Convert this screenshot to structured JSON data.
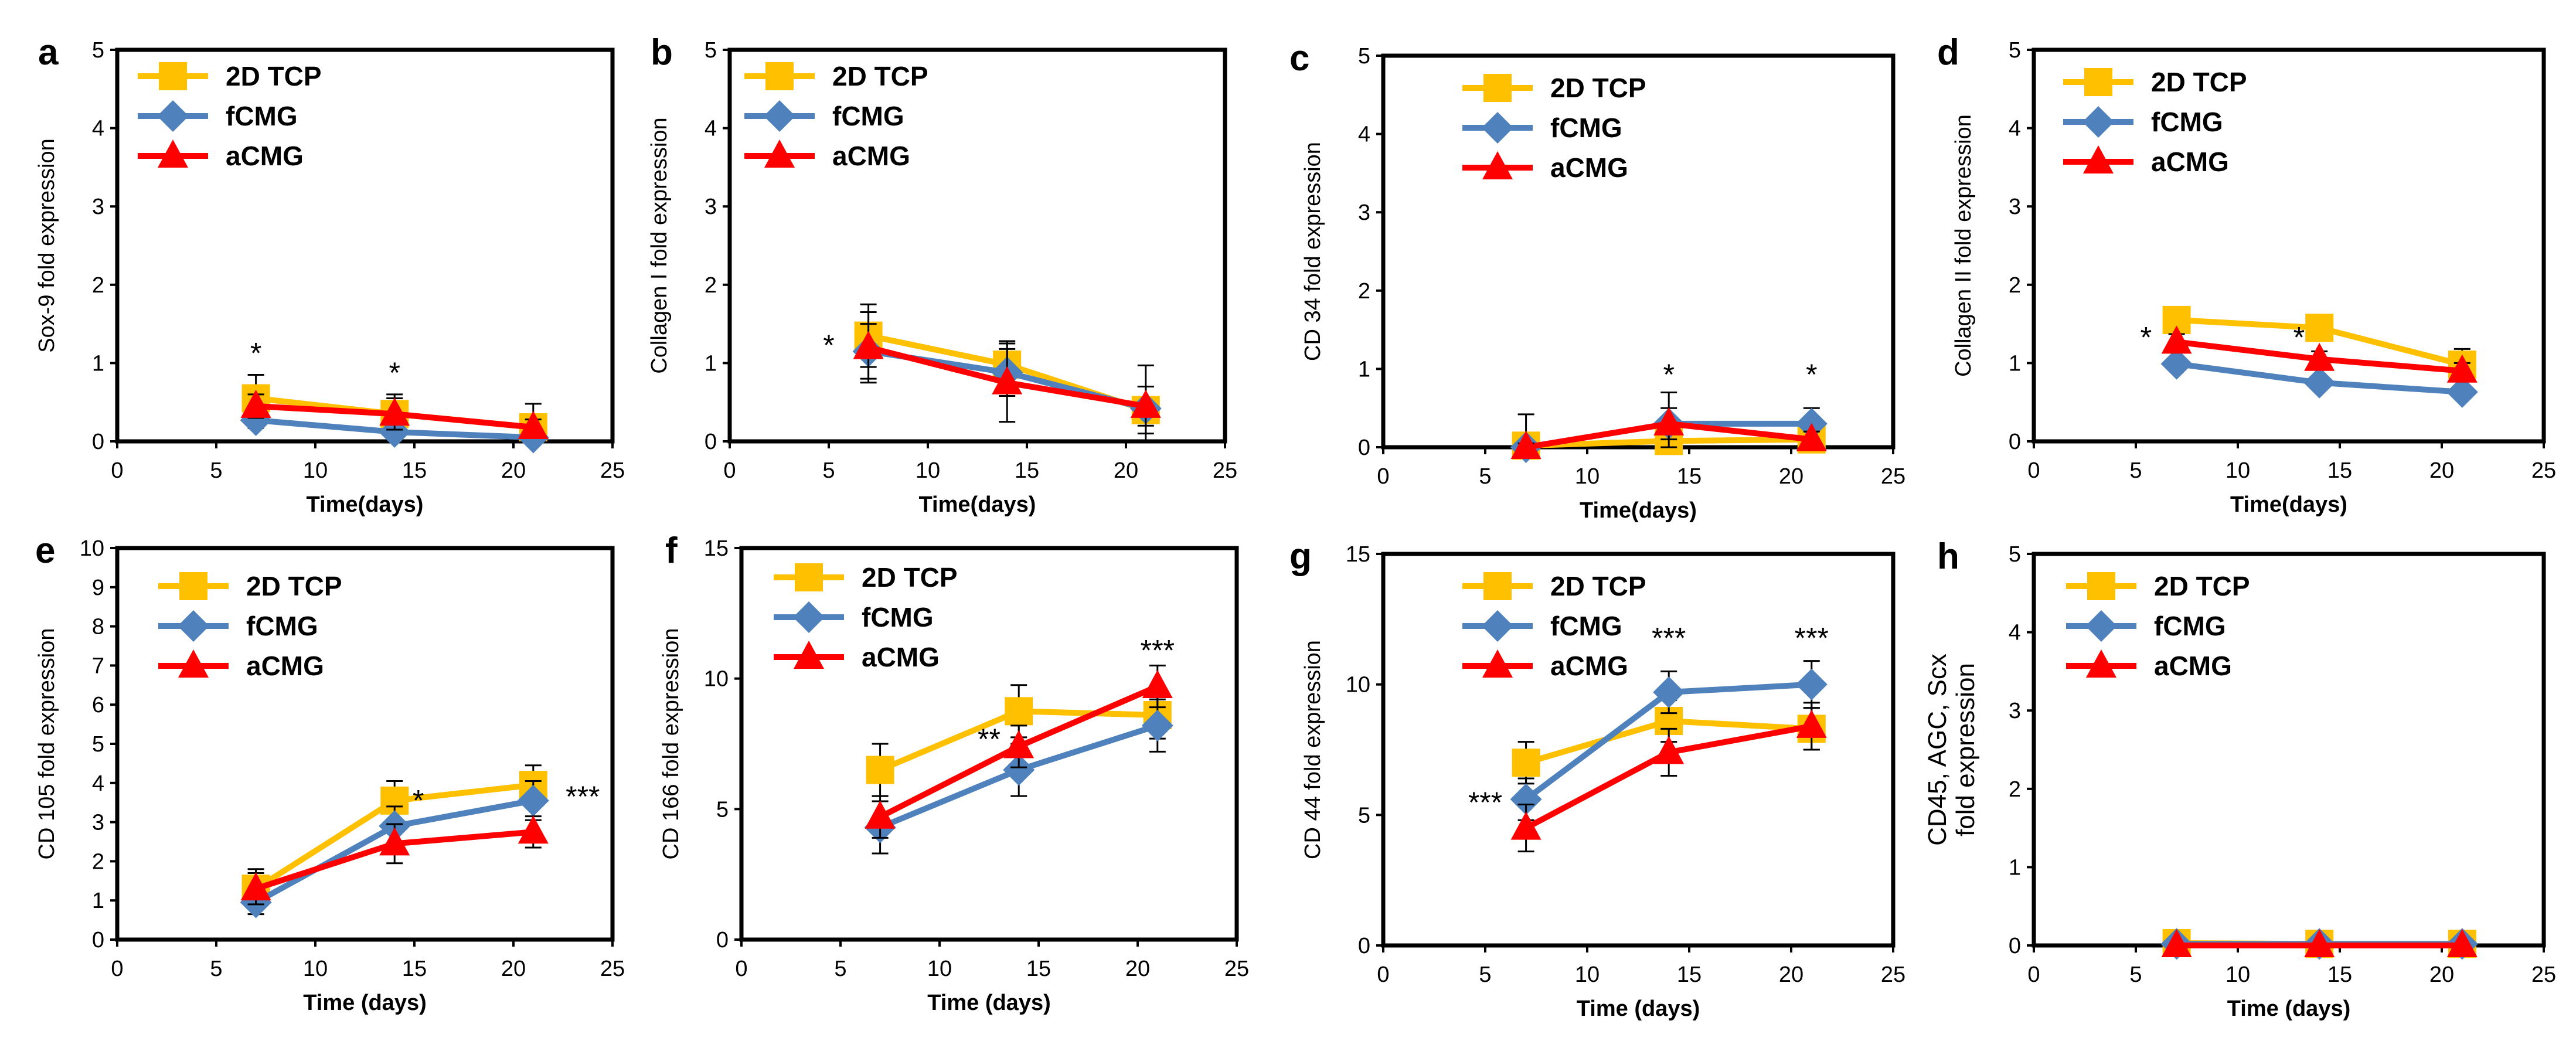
{
  "colors": {
    "tcp": "#FFC000",
    "fcmg": "#4F81BD",
    "acmg": "#FF0000",
    "axis": "#000000"
  },
  "legend": [
    "2D TCP",
    "fCMG",
    "aCMG"
  ],
  "chart_data": [
    {
      "panel": "a",
      "type": "line",
      "ylabel": "Sox-9 fold expression",
      "xlabel": "Time(days)",
      "xlim": [
        0,
        25
      ],
      "xticks": [
        "0",
        "5",
        "10",
        "15",
        "20",
        "25"
      ],
      "ylim": [
        0,
        5
      ],
      "yticks": [
        "0",
        "1",
        "2",
        "3",
        "4",
        "5"
      ],
      "x": [
        7,
        14,
        21
      ],
      "series": [
        {
          "name": "2D TCP",
          "values": [
            0.55,
            0.35,
            0.18
          ],
          "err": [
            0.3,
            0.25,
            0.3
          ]
        },
        {
          "name": "fCMG",
          "values": [
            0.27,
            0.12,
            0.05
          ],
          "err": [
            0.1,
            0.1,
            0.05
          ]
        },
        {
          "name": "aCMG",
          "values": [
            0.45,
            0.35,
            0.18
          ],
          "err": [
            0.15,
            0.2,
            0.1
          ]
        }
      ],
      "annotations": [
        {
          "text": "*",
          "x": 7,
          "y": 1.0
        },
        {
          "text": "*",
          "x": 14,
          "y": 0.75
        }
      ]
    },
    {
      "panel": "b",
      "type": "line",
      "ylabel": "Collagen I  fold expression",
      "xlabel": "Time(days)",
      "xlim": [
        0,
        25
      ],
      "xticks": [
        "0",
        "5",
        "10",
        "15",
        "20",
        "25"
      ],
      "ylim": [
        0,
        5
      ],
      "yticks": [
        "0",
        "1",
        "2",
        "3",
        "4",
        "5"
      ],
      "x": [
        7,
        14,
        21
      ],
      "series": [
        {
          "name": "2D TCP",
          "values": [
            1.35,
            0.98,
            0.4
          ],
          "err": [
            0.4,
            0.3,
            0.3
          ]
        },
        {
          "name": "fCMG",
          "values": [
            1.15,
            0.88,
            0.42
          ],
          "err": [
            0.35,
            0.3,
            0.55
          ]
        },
        {
          "name": "aCMG",
          "values": [
            1.2,
            0.75,
            0.45
          ],
          "err": [
            0.45,
            0.5,
            0.25
          ]
        }
      ],
      "annotations": [
        {
          "text": "*",
          "x": 5,
          "y": 1.1
        }
      ]
    },
    {
      "panel": "c",
      "type": "line",
      "ylabel": "CD 34 fold expression",
      "xlabel": "Time(days)",
      "xlim": [
        0,
        25
      ],
      "xticks": [
        "0",
        "5",
        "10",
        "15",
        "20",
        "25"
      ],
      "ylim": [
        0,
        5
      ],
      "yticks": [
        "0",
        "1",
        "2",
        "3",
        "4",
        "5"
      ],
      "x": [
        7,
        14,
        21
      ],
      "series": [
        {
          "name": "2D TCP",
          "values": [
            0.02,
            0.08,
            0.1
          ],
          "err": [
            0.4,
            0.1,
            0.1
          ]
        },
        {
          "name": "fCMG",
          "values": [
            0.0,
            0.3,
            0.3
          ],
          "err": [
            0.05,
            0.4,
            0.2
          ]
        },
        {
          "name": "aCMG",
          "values": [
            0.0,
            0.3,
            0.1
          ],
          "err": [
            0.05,
            0.2,
            0.1
          ]
        }
      ],
      "annotations": [
        {
          "text": "*",
          "x": 14,
          "y": 0.8
        },
        {
          "text": "*",
          "x": 21,
          "y": 0.8
        }
      ]
    },
    {
      "panel": "d",
      "type": "line",
      "ylabel": "Collagen II fold expression",
      "xlabel": "Time(days)",
      "xlim": [
        0,
        25
      ],
      "xticks": [
        "0",
        "5",
        "10",
        "15",
        "20",
        "25"
      ],
      "ylim": [
        0,
        5
      ],
      "yticks": [
        "0",
        "1",
        "2",
        "3",
        "4",
        "5"
      ],
      "x": [
        7,
        14,
        21
      ],
      "series": [
        {
          "name": "2D TCP",
          "values": [
            1.55,
            1.45,
            0.98
          ],
          "err": [
            0.12,
            0.15,
            0.2
          ]
        },
        {
          "name": "fCMG",
          "values": [
            0.99,
            0.75,
            0.63
          ],
          "err": [
            0.08,
            0.08,
            0.08
          ]
        },
        {
          "name": "aCMG",
          "values": [
            1.27,
            1.05,
            0.9
          ],
          "err": [
            0.1,
            0.1,
            0.1
          ]
        }
      ],
      "annotations": [
        {
          "text": "*",
          "x": 5.5,
          "y": 1.2
        },
        {
          "text": "*",
          "x": 13,
          "y": 1.2
        }
      ]
    },
    {
      "panel": "e",
      "type": "line",
      "ylabel": "CD 105 fold expression",
      "xlabel": "Time (days)",
      "xlim": [
        0,
        25
      ],
      "xticks": [
        "0",
        "5",
        "10",
        "15",
        "20",
        "25"
      ],
      "ylim": [
        0,
        10
      ],
      "yticks": [
        "0",
        "1",
        "2",
        "3",
        "4",
        "5",
        "6",
        "7",
        "8",
        "9",
        "10"
      ],
      "x": [
        7,
        14,
        21
      ],
      "series": [
        {
          "name": "2D TCP",
          "values": [
            1.3,
            3.55,
            3.95
          ],
          "err": [
            0.5,
            0.5,
            0.5
          ]
        },
        {
          "name": "fCMG",
          "values": [
            0.95,
            2.9,
            3.55
          ],
          "err": [
            0.3,
            0.5,
            0.5
          ]
        },
        {
          "name": "aCMG",
          "values": [
            1.3,
            2.45,
            2.75
          ],
          "err": [
            0.4,
            0.5,
            0.4
          ]
        }
      ],
      "annotations": [
        {
          "text": "*",
          "x": 15.2,
          "y": 3.3
        },
        {
          "text": "***",
          "x": 23.5,
          "y": 3.4
        }
      ]
    },
    {
      "panel": "f",
      "type": "line",
      "ylabel": "CD 166 fold expression",
      "xlabel": "Time (days)",
      "xlim": [
        0,
        25
      ],
      "xticks": [
        "0",
        "5",
        "10",
        "15",
        "20",
        "25"
      ],
      "ylim": [
        0,
        15
      ],
      "yticks": [
        "0",
        "5",
        "10",
        "15"
      ],
      "x": [
        7,
        14,
        21
      ],
      "series": [
        {
          "name": "2D TCP",
          "values": [
            6.5,
            8.75,
            8.6
          ],
          "err": [
            1.0,
            1.0,
            0.9
          ]
        },
        {
          "name": "fCMG",
          "values": [
            4.3,
            6.5,
            8.2
          ],
          "err": [
            1.0,
            1.0,
            1.0
          ]
        },
        {
          "name": "aCMG",
          "values": [
            4.7,
            7.4,
            9.7
          ],
          "err": [
            0.8,
            0.8,
            0.8
          ]
        }
      ],
      "annotations": [
        {
          "text": "**",
          "x": 12.5,
          "y": 7.3
        },
        {
          "text": "***",
          "x": 21,
          "y": 10.7
        }
      ]
    },
    {
      "panel": "g",
      "type": "line",
      "ylabel": "CD 44 fold expression",
      "xlabel": "Time (days)",
      "xlim": [
        0,
        25
      ],
      "xticks": [
        "0",
        "5",
        "10",
        "15",
        "20",
        "25"
      ],
      "ylim": [
        0,
        15
      ],
      "yticks": [
        "0",
        "5",
        "10",
        "15"
      ],
      "x": [
        7,
        14,
        21
      ],
      "series": [
        {
          "name": "2D TCP",
          "values": [
            7.0,
            8.6,
            8.3
          ],
          "err": [
            0.8,
            0.8,
            0.8
          ]
        },
        {
          "name": "fCMG",
          "values": [
            5.6,
            9.7,
            10.0
          ],
          "err": [
            0.8,
            0.8,
            0.9
          ]
        },
        {
          "name": "aCMG",
          "values": [
            4.5,
            7.4,
            8.4
          ],
          "err": [
            0.9,
            0.9,
            0.9
          ]
        }
      ],
      "annotations": [
        {
          "text": "***",
          "x": 5,
          "y": 5.1
        },
        {
          "text": "***",
          "x": 14,
          "y": 11.4
        },
        {
          "text": "***",
          "x": 21,
          "y": 11.4
        }
      ]
    },
    {
      "panel": "h",
      "type": "line",
      "ylabel": [
        "CD45, AGC, Scx",
        "fold expression"
      ],
      "xlabel": "Time (days)",
      "xlim": [
        0,
        25
      ],
      "xticks": [
        "0",
        "5",
        "10",
        "15",
        "20",
        "25"
      ],
      "ylim": [
        0,
        5
      ],
      "yticks": [
        "0",
        "1",
        "2",
        "3",
        "4",
        "5"
      ],
      "x": [
        7,
        14,
        21
      ],
      "series": [
        {
          "name": "2D TCP",
          "values": [
            0.03,
            0.02,
            0.02
          ],
          "err": [
            0,
            0,
            0
          ]
        },
        {
          "name": "fCMG",
          "values": [
            0.02,
            0.02,
            0.02
          ],
          "err": [
            0,
            0,
            0
          ]
        },
        {
          "name": "aCMG",
          "values": [
            0.0,
            0.0,
            0.0
          ],
          "err": [
            0,
            0,
            0
          ]
        }
      ],
      "annotations": []
    }
  ]
}
